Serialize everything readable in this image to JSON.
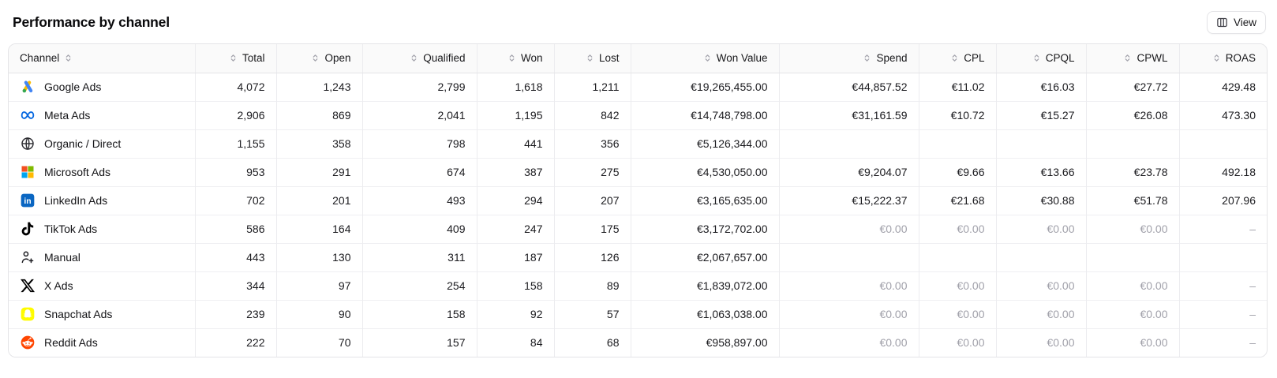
{
  "page": {
    "title": "Performance by channel"
  },
  "toolbar": {
    "view_label": "View"
  },
  "colors": {
    "border": "#e4e4e7",
    "header_bg": "#fafafa",
    "muted_text": "#a1a1aa",
    "google_blue": "#4285F4",
    "google_green": "#34A853",
    "google_yellow": "#FBBC04",
    "meta_blue": "#0668E1",
    "linkedin_blue": "#0A66C2",
    "snapchat_yellow": "#FFFC00",
    "reddit_orange": "#FF4500",
    "ms_red": "#F25022",
    "ms_green": "#7FBA00",
    "ms_blue": "#00A4EF",
    "ms_yellow": "#FFB900"
  },
  "table": {
    "columns": [
      {
        "key": "channel",
        "label": "Channel",
        "align": "left"
      },
      {
        "key": "total",
        "label": "Total",
        "align": "right"
      },
      {
        "key": "open",
        "label": "Open",
        "align": "right"
      },
      {
        "key": "qualified",
        "label": "Qualified",
        "align": "right"
      },
      {
        "key": "won",
        "label": "Won",
        "align": "right"
      },
      {
        "key": "lost",
        "label": "Lost",
        "align": "right"
      },
      {
        "key": "won_value",
        "label": "Won Value",
        "align": "right"
      },
      {
        "key": "spend",
        "label": "Spend",
        "align": "right"
      },
      {
        "key": "cpl",
        "label": "CPL",
        "align": "right"
      },
      {
        "key": "cpql",
        "label": "CPQL",
        "align": "right"
      },
      {
        "key": "cpwl",
        "label": "CPWL",
        "align": "right"
      },
      {
        "key": "roas",
        "label": "ROAS",
        "align": "right"
      }
    ],
    "muted_columns": [
      "spend",
      "cpl",
      "cpql",
      "cpwl",
      "roas"
    ],
    "rows": [
      {
        "icon": "google-ads",
        "channel": "Google Ads",
        "total": "4,072",
        "open": "1,243",
        "qualified": "2,799",
        "won": "1,618",
        "lost": "1,211",
        "won_value": "€19,265,455.00",
        "spend": "€44,857.52",
        "cpl": "€11.02",
        "cpql": "€16.03",
        "cpwl": "€27.72",
        "roas": "429.48",
        "costs_muted": false
      },
      {
        "icon": "meta",
        "channel": "Meta Ads",
        "total": "2,906",
        "open": "869",
        "qualified": "2,041",
        "won": "1,195",
        "lost": "842",
        "won_value": "€14,748,798.00",
        "spend": "€31,161.59",
        "cpl": "€10.72",
        "cpql": "€15.27",
        "cpwl": "€26.08",
        "roas": "473.30",
        "costs_muted": false
      },
      {
        "icon": "globe",
        "channel": "Organic / Direct",
        "total": "1,155",
        "open": "358",
        "qualified": "798",
        "won": "441",
        "lost": "356",
        "won_value": "€5,126,344.00",
        "spend": "",
        "cpl": "",
        "cpql": "",
        "cpwl": "",
        "roas": "",
        "costs_muted": false
      },
      {
        "icon": "microsoft",
        "channel": "Microsoft Ads",
        "total": "953",
        "open": "291",
        "qualified": "674",
        "won": "387",
        "lost": "275",
        "won_value": "€4,530,050.00",
        "spend": "€9,204.07",
        "cpl": "€9.66",
        "cpql": "€13.66",
        "cpwl": "€23.78",
        "roas": "492.18",
        "costs_muted": false
      },
      {
        "icon": "linkedin",
        "channel": "LinkedIn Ads",
        "total": "702",
        "open": "201",
        "qualified": "493",
        "won": "294",
        "lost": "207",
        "won_value": "€3,165,635.00",
        "spend": "€15,222.37",
        "cpl": "€21.68",
        "cpql": "€30.88",
        "cpwl": "€51.78",
        "roas": "207.96",
        "costs_muted": false
      },
      {
        "icon": "tiktok",
        "channel": "TikTok Ads",
        "total": "586",
        "open": "164",
        "qualified": "409",
        "won": "247",
        "lost": "175",
        "won_value": "€3,172,702.00",
        "spend": "€0.00",
        "cpl": "€0.00",
        "cpql": "€0.00",
        "cpwl": "€0.00",
        "roas": "–",
        "costs_muted": true
      },
      {
        "icon": "user-plus",
        "channel": "Manual",
        "total": "443",
        "open": "130",
        "qualified": "311",
        "won": "187",
        "lost": "126",
        "won_value": "€2,067,657.00",
        "spend": "",
        "cpl": "",
        "cpql": "",
        "cpwl": "",
        "roas": "",
        "costs_muted": false
      },
      {
        "icon": "x",
        "channel": "X Ads",
        "total": "344",
        "open": "97",
        "qualified": "254",
        "won": "158",
        "lost": "89",
        "won_value": "€1,839,072.00",
        "spend": "€0.00",
        "cpl": "€0.00",
        "cpql": "€0.00",
        "cpwl": "€0.00",
        "roas": "–",
        "costs_muted": true
      },
      {
        "icon": "snapchat",
        "channel": "Snapchat Ads",
        "total": "239",
        "open": "90",
        "qualified": "158",
        "won": "92",
        "lost": "57",
        "won_value": "€1,063,038.00",
        "spend": "€0.00",
        "cpl": "€0.00",
        "cpql": "€0.00",
        "cpwl": "€0.00",
        "roas": "–",
        "costs_muted": true
      },
      {
        "icon": "reddit",
        "channel": "Reddit Ads",
        "total": "222",
        "open": "70",
        "qualified": "157",
        "won": "84",
        "lost": "68",
        "won_value": "€958,897.00",
        "spend": "€0.00",
        "cpl": "€0.00",
        "cpql": "€0.00",
        "cpwl": "€0.00",
        "roas": "–",
        "costs_muted": true
      }
    ]
  }
}
